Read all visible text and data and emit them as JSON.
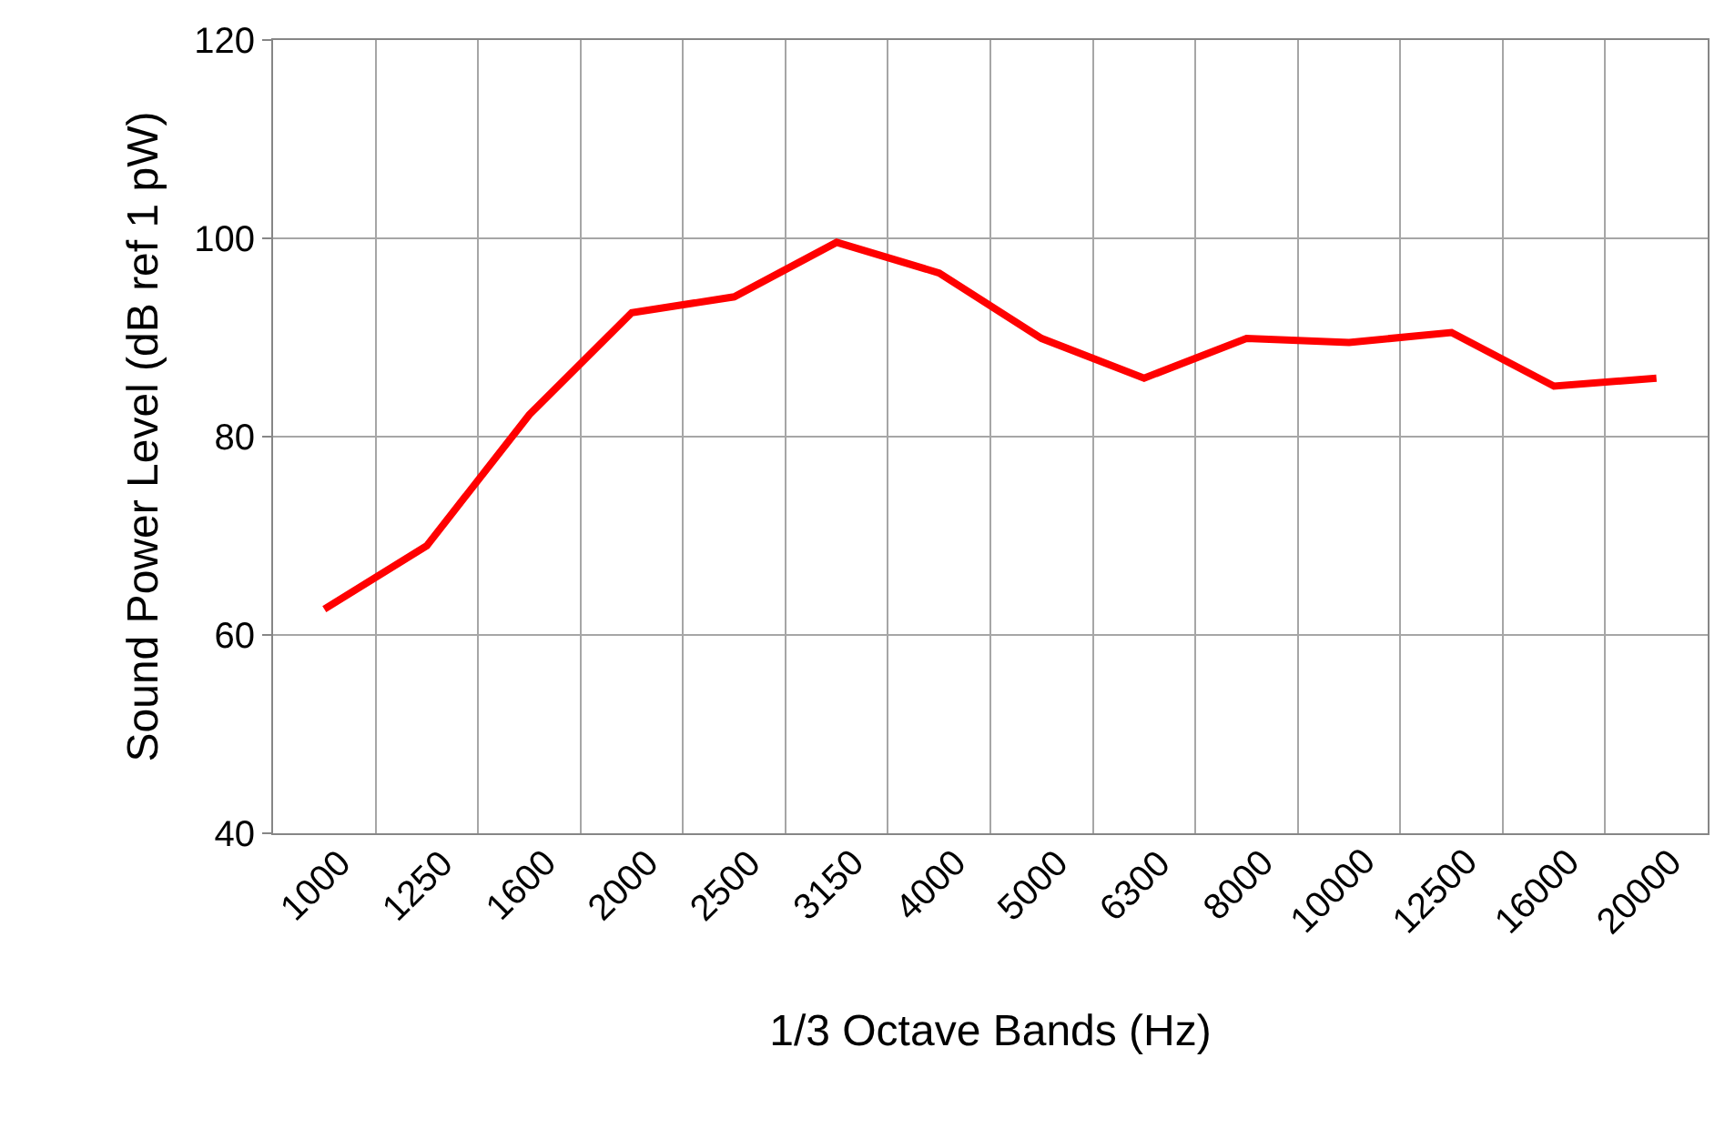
{
  "chart_data": {
    "type": "line",
    "xlabel": "1/3 Octave Bands (Hz)",
    "ylabel": "Sound Power Level (dB ref 1 pW)",
    "categories": [
      "1000",
      "1250",
      "1600",
      "2000",
      "2500",
      "3150",
      "4000",
      "5000",
      "6300",
      "8000",
      "10000",
      "12500",
      "16000",
      "20000"
    ],
    "series": [
      {
        "color": "#ff0000",
        "values": [
          62.6,
          69,
          82.2,
          92.5,
          94.1,
          99.6,
          96.5,
          89.9,
          85.9,
          89.9,
          89.5,
          90.5,
          85.1,
          85.9
        ]
      }
    ],
    "ylim": [
      40,
      120
    ],
    "yticks": [
      40,
      60,
      80,
      100,
      120
    ],
    "grid": true,
    "marker": "none",
    "line_style": "solid"
  }
}
